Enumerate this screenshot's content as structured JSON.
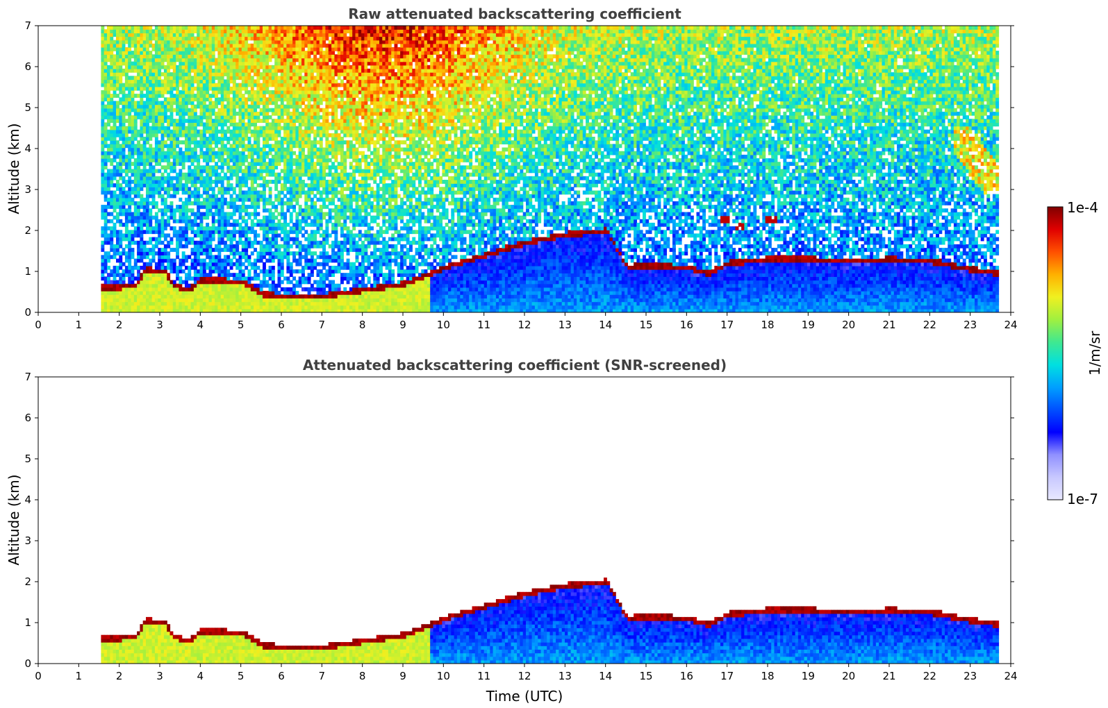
{
  "chart_data": [
    {
      "type": "heatmap",
      "title": "Raw attenuated backscattering coefficient",
      "xlabel": "",
      "ylabel": "Altitude (km)",
      "xlim": [
        0,
        24
      ],
      "ylim": [
        0,
        7
      ],
      "x_ticks": [
        "0",
        "1",
        "2",
        "3",
        "4",
        "5",
        "6",
        "7",
        "8",
        "9",
        "10",
        "11",
        "12",
        "13",
        "14",
        "15",
        "16",
        "17",
        "18",
        "19",
        "20",
        "21",
        "22",
        "23",
        "24"
      ],
      "y_ticks": [
        "0",
        "1",
        "2",
        "3",
        "4",
        "5",
        "6",
        "7"
      ],
      "data_time_range": [
        1.55,
        23.7
      ],
      "boundary_layer_top": [
        [
          1.6,
          0.5
        ],
        [
          2.4,
          0.55
        ],
        [
          2.6,
          0.95
        ],
        [
          3.1,
          0.9
        ],
        [
          3.3,
          0.55
        ],
        [
          3.7,
          0.45
        ],
        [
          4.0,
          0.7
        ],
        [
          5.0,
          0.65
        ],
        [
          5.5,
          0.35
        ],
        [
          6.0,
          0.3
        ],
        [
          7.0,
          0.3
        ],
        [
          8.0,
          0.45
        ],
        [
          9.0,
          0.6
        ],
        [
          9.5,
          0.8
        ],
        [
          10.0,
          1.0
        ],
        [
          11.0,
          1.3
        ],
        [
          12.0,
          1.6
        ],
        [
          13.0,
          1.8
        ],
        [
          14.0,
          1.9
        ],
        [
          14.5,
          1.0
        ],
        [
          15.0,
          1.05
        ],
        [
          16.0,
          1.0
        ],
        [
          16.5,
          0.85
        ],
        [
          17.0,
          1.1
        ],
        [
          18.0,
          1.2
        ],
        [
          19.0,
          1.2
        ],
        [
          20.0,
          1.15
        ],
        [
          21.0,
          1.2
        ],
        [
          22.0,
          1.15
        ],
        [
          23.0,
          0.95
        ],
        [
          23.7,
          0.85
        ]
      ],
      "features": [
        {
          "type": "cirrus",
          "x": [
            22.55,
            23.7
          ],
          "y": [
            2.8,
            4.5
          ]
        },
        {
          "type": "cloud",
          "x": 16.9,
          "y": 2.2
        },
        {
          "type": "cloud",
          "x": 17.3,
          "y": 2.05
        },
        {
          "type": "cloud",
          "x": 18.05,
          "y": 2.25
        }
      ]
    },
    {
      "type": "heatmap",
      "title": "Attenuated backscattering coefficient (SNR-screened)",
      "xlabel": "Time (UTC)",
      "ylabel": "Altitude (km)",
      "xlim": [
        0,
        24
      ],
      "ylim": [
        0,
        7
      ],
      "x_ticks": [
        "0",
        "1",
        "2",
        "3",
        "4",
        "5",
        "6",
        "7",
        "8",
        "9",
        "10",
        "11",
        "12",
        "13",
        "14",
        "15",
        "16",
        "17",
        "18",
        "19",
        "20",
        "21",
        "22",
        "23",
        "24"
      ],
      "y_ticks": [
        "0",
        "1",
        "2",
        "3",
        "4",
        "5",
        "6",
        "7"
      ],
      "data_time_range": [
        1.55,
        23.7
      ]
    }
  ],
  "colorbar": {
    "label": "1/m/sr",
    "max_label": "1e-4",
    "min_label": "1e-7",
    "scale": "log",
    "colormap": [
      "#e8e8ff",
      "#c8c8ff",
      "#9090ff",
      "#0000ff",
      "#0050ff",
      "#00a0ff",
      "#00e0e0",
      "#40e890",
      "#a0f040",
      "#f0f020",
      "#ffb000",
      "#ff5000",
      "#e00000",
      "#800000"
    ]
  }
}
